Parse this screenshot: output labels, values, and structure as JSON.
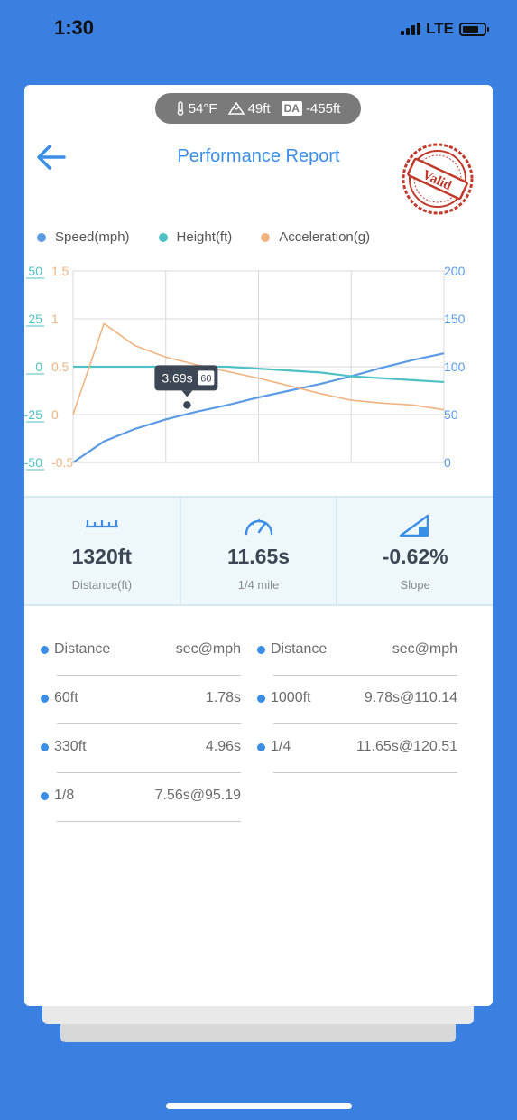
{
  "status": {
    "time": "1:30",
    "network": "LTE"
  },
  "weather": {
    "temperature": "54°F",
    "elevation": "49ft",
    "da_label": "DA",
    "da_value": "-455ft"
  },
  "header": {
    "title": "Performance Report",
    "stamp_text": "Valid"
  },
  "legend": [
    {
      "label": "Speed(mph)",
      "color": "#5b9be6"
    },
    {
      "label": "Height(ft)",
      "color": "#4fc0c4"
    },
    {
      "label": "Acceleration(g)",
      "color": "#f0b37f"
    }
  ],
  "chart_data": {
    "type": "line",
    "x": [
      0,
      1,
      2,
      3,
      4,
      5,
      6,
      7,
      8,
      9,
      10,
      11,
      12
    ],
    "series": [
      {
        "name": "Speed(mph)",
        "axis": "right",
        "values": [
          0,
          22,
          35,
          45,
          53,
          60,
          68,
          75,
          82,
          90,
          99,
          107,
          114
        ]
      },
      {
        "name": "Height(ft)",
        "axis": "left-outer",
        "values": [
          0,
          0,
          0,
          0,
          0,
          0,
          -1,
          -2,
          -3,
          -5,
          -6,
          -7,
          -8
        ]
      },
      {
        "name": "Acceleration(g)",
        "axis": "left-inner",
        "values": [
          0,
          0.95,
          0.72,
          0.6,
          0.52,
          0.45,
          0.38,
          0.3,
          0.22,
          0.15,
          0.12,
          0.1,
          0.05
        ]
      }
    ],
    "axes": {
      "left_outer": {
        "ticks": [
          "50",
          "25",
          "0",
          "-25",
          "-50"
        ],
        "range": [
          -50,
          50
        ]
      },
      "left_inner": {
        "ticks": [
          "1.5",
          "1",
          "0.5",
          "0",
          "-0.5"
        ],
        "range": [
          -0.5,
          1.5
        ]
      },
      "right": {
        "ticks": [
          "200",
          "150",
          "100",
          "50",
          "0"
        ],
        "range": [
          0,
          200
        ]
      }
    },
    "tooltip": {
      "label": "3.69s",
      "badge": "60",
      "x": 3.69,
      "y": 60
    },
    "grid": true
  },
  "stats": [
    {
      "value": "1320ft",
      "label": "Distance(ft)",
      "icon": "ruler-icon"
    },
    {
      "value": "11.65s",
      "label": "1/4 mile",
      "icon": "speedometer-icon"
    },
    {
      "value": "-0.62%",
      "label": "Slope",
      "icon": "slope-icon"
    }
  ],
  "splits": {
    "left": [
      {
        "name": "Distance",
        "value": "sec@mph"
      },
      {
        "name": "60ft",
        "value": "1.78s"
      },
      {
        "name": "330ft",
        "value": "4.96s"
      },
      {
        "name": "1/8",
        "value": "7.56s@95.19"
      }
    ],
    "right": [
      {
        "name": "Distance",
        "value": "sec@mph"
      },
      {
        "name": "1000ft",
        "value": "9.78s@110.14"
      },
      {
        "name": "1/4",
        "value": "11.65s@120.51"
      }
    ]
  }
}
